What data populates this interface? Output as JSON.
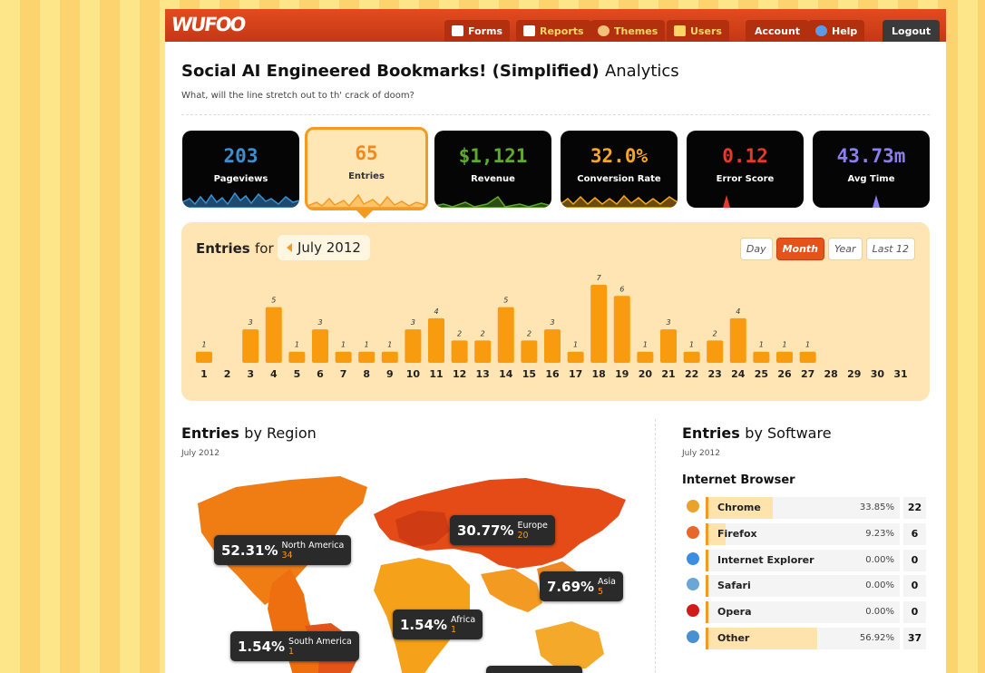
{
  "app": {
    "logo": "WUFOO"
  },
  "nav": [
    {
      "label": "Forms",
      "icon": "forms-icon"
    },
    {
      "label": "Reports",
      "icon": "reports-icon"
    },
    {
      "label": "Themes",
      "icon": "themes-icon"
    },
    {
      "label": "Users",
      "icon": "users-icon"
    },
    {
      "label": "Account"
    },
    {
      "label": "Help",
      "icon": "help-icon"
    },
    {
      "label": "Logout"
    }
  ],
  "page": {
    "title_bold": "Social AI Engineered Bookmarks! (Simplified)",
    "title_light": "Analytics",
    "subtitle": "What, will the line stretch out to th' crack of doom?"
  },
  "stats": [
    {
      "value": "203",
      "label": "Pageviews",
      "color": "#3a8fd0"
    },
    {
      "value": "65",
      "label": "Entries",
      "color": "#f08a1c"
    },
    {
      "value": "$1,121",
      "label": "Revenue",
      "color": "#5eaa2a"
    },
    {
      "value": "32.0%",
      "label": "Conversion Rate",
      "color": "#f6a623"
    },
    {
      "value": "0.12",
      "label": "Error Score",
      "color": "#e53a2a"
    },
    {
      "value": "43.73m",
      "label": "Avg Time",
      "color": "#8a7ef0"
    }
  ],
  "entries_panel": {
    "title": "Entries",
    "for": "for",
    "month": "July 2012",
    "ranges": [
      "Day",
      "Month",
      "Year",
      "Last 12"
    ],
    "active_range": "Month"
  },
  "chart_data": {
    "type": "bar",
    "categories": [
      "1",
      "2",
      "3",
      "4",
      "5",
      "6",
      "7",
      "8",
      "9",
      "10",
      "11",
      "12",
      "13",
      "14",
      "15",
      "16",
      "17",
      "18",
      "19",
      "20",
      "21",
      "22",
      "23",
      "24",
      "25",
      "26",
      "27",
      "28",
      "29",
      "30",
      "31"
    ],
    "values": [
      1,
      0,
      3,
      5,
      1,
      3,
      1,
      1,
      1,
      3,
      4,
      2,
      2,
      5,
      2,
      3,
      1,
      7,
      6,
      1,
      3,
      1,
      2,
      4,
      1,
      1,
      1,
      0,
      0,
      0,
      0
    ],
    "ylim": [
      0,
      7
    ],
    "grid": false,
    "bar_color": "#f99b0e"
  },
  "region": {
    "title_bold": "Entries",
    "title_light": "by Region",
    "period": "July 2012",
    "tips": [
      {
        "pct": "52.31%",
        "name": "North America",
        "count": "34"
      },
      {
        "pct": "30.77%",
        "name": "Europe",
        "count": "20"
      },
      {
        "pct": "7.69%",
        "name": "Asia",
        "count": "5"
      },
      {
        "pct": "1.54%",
        "name": "Africa",
        "count": "1"
      },
      {
        "pct": "1.54%",
        "name": "South America",
        "count": "1"
      }
    ]
  },
  "software": {
    "title_bold": "Entries",
    "title_light": "by Software",
    "period": "July 2012",
    "group": "Internet Browser",
    "browsers": [
      {
        "name": "Chrome",
        "pct": "33.85%",
        "count": "22",
        "share": 0.3385,
        "icon": "chrome-icon",
        "color": "#e9a22a"
      },
      {
        "name": "Firefox",
        "pct": "9.23%",
        "count": "6",
        "share": 0.0923,
        "icon": "firefox-icon",
        "color": "#e8672a"
      },
      {
        "name": "Internet Explorer",
        "pct": "0.00%",
        "count": "0",
        "share": 0,
        "icon": "internet-explorer-icon",
        "color": "#3d8ee0"
      },
      {
        "name": "Safari",
        "pct": "0.00%",
        "count": "0",
        "share": 0,
        "icon": "safari-icon",
        "color": "#6aa6d8"
      },
      {
        "name": "Opera",
        "pct": "0.00%",
        "count": "0",
        "share": 0,
        "icon": "opera-icon",
        "color": "#d21b1b"
      },
      {
        "name": "Other",
        "pct": "56.92%",
        "count": "37",
        "share": 0.5692,
        "icon": "globe-icon",
        "color": "#4a8fcf"
      }
    ]
  }
}
